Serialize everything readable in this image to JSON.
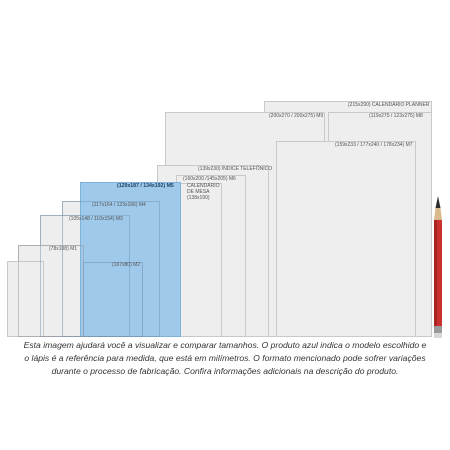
{
  "colors": {
    "highlight": "#9ec9ea",
    "panel": "#eeeeee",
    "border": "#c9c9c9",
    "pencil_body": "#c9312e"
  },
  "sizes": [
    {
      "id": "planner",
      "label": "(215x290) CALENDÁRIO PLANNER"
    },
    {
      "id": "m9",
      "label": "(200x270 / 200x275) M9"
    },
    {
      "id": "m8",
      "label": "(119x275 / 123x275) M8"
    },
    {
      "id": "m7",
      "label": "(159x233 / 177x240 / 178x234) M7"
    },
    {
      "id": "indice",
      "label": "(139x230) ÍNDICE TELEFÔNICO"
    },
    {
      "id": "m6",
      "label": "(160x200 /145x205) M6"
    },
    {
      "id": "calendario",
      "label": "CALENDÁRIO DE MESA (138x190)"
    },
    {
      "id": "m5",
      "label": "(129x187 / 134x192) M5"
    },
    {
      "id": "m4",
      "label": "(117x164 / 123x166) M4"
    },
    {
      "id": "m3",
      "label": "(105x148 / 110x154) M3"
    },
    {
      "id": "m1",
      "label": "(78x108) M1"
    },
    {
      "id": "m2",
      "label": "(167x80) M2"
    }
  ],
  "calendario_lines": [
    "CALENDÁRIO",
    "DE MESA",
    "(138x190)"
  ],
  "caption_lines": [
    "Esta imagem ajudará você a visualizar e comparar tamanhos. O produto azul indica o modelo escolhido e",
    "o lápis é a referência para medida, que está em milímetros. O formato mencionado pode sofrer variações",
    "durante o processo de fabricação. Confira informações adicionais na descrição do produto."
  ]
}
